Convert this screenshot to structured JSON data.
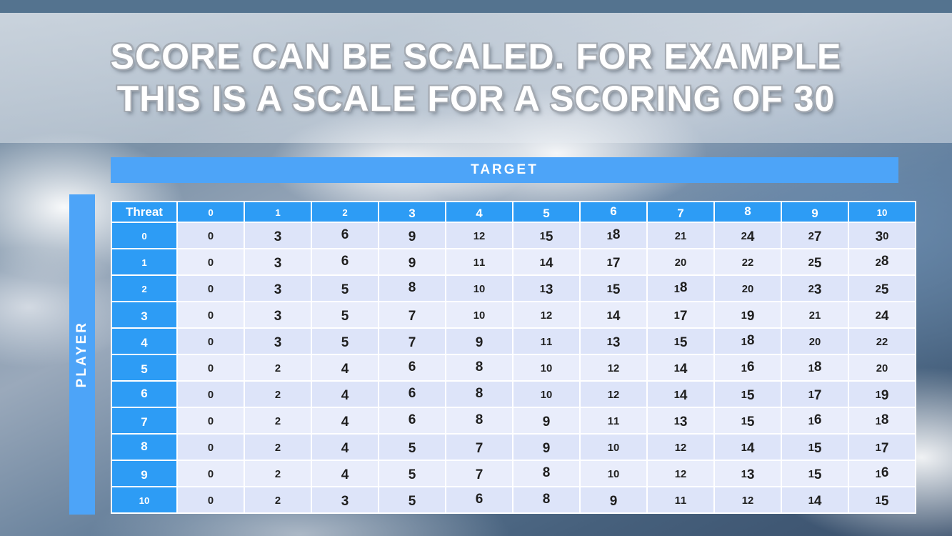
{
  "slide": {
    "title_line1": "SCORE CAN BE SCALED. FOR EXAMPLE",
    "title_line2": "THIS IS A SCALE FOR A SCORING OF 30"
  },
  "table": {
    "target_label": "TARGET",
    "player_label": "PLAYER",
    "corner_label": "Threat",
    "col_headers": [
      "0",
      "1",
      "2",
      "3",
      "4",
      "5",
      "6",
      "7",
      "8",
      "9",
      "10"
    ],
    "row_headers": [
      "0",
      "1",
      "2",
      "3",
      "4",
      "5",
      "6",
      "7",
      "8",
      "9",
      "10"
    ],
    "rows": [
      [
        0,
        3,
        6,
        9,
        12,
        15,
        18,
        21,
        24,
        27,
        30
      ],
      [
        0,
        3,
        6,
        9,
        11,
        14,
        17,
        20,
        22,
        25,
        28
      ],
      [
        0,
        3,
        5,
        8,
        10,
        13,
        15,
        18,
        20,
        23,
        25
      ],
      [
        0,
        3,
        5,
        7,
        10,
        12,
        14,
        17,
        19,
        21,
        24
      ],
      [
        0,
        3,
        5,
        7,
        9,
        11,
        13,
        15,
        18,
        20,
        22
      ],
      [
        0,
        2,
        4,
        6,
        8,
        10,
        12,
        14,
        16,
        18,
        20
      ],
      [
        0,
        2,
        4,
        6,
        8,
        10,
        12,
        14,
        15,
        17,
        19
      ],
      [
        0,
        2,
        4,
        6,
        8,
        9,
        11,
        13,
        15,
        16,
        18
      ],
      [
        0,
        2,
        4,
        5,
        7,
        9,
        10,
        12,
        14,
        15,
        17
      ],
      [
        0,
        2,
        4,
        5,
        7,
        8,
        10,
        12,
        13,
        15,
        16
      ],
      [
        0,
        2,
        3,
        5,
        6,
        8,
        9,
        11,
        12,
        14,
        15
      ]
    ]
  },
  "colors": {
    "top_bar": "#54738f",
    "band_blue": "#4da4f8",
    "header_blue": "#2d9cf5",
    "row_light": "#e9edfb",
    "row_dark": "#dde4f9",
    "title_text": "#ffffff"
  }
}
